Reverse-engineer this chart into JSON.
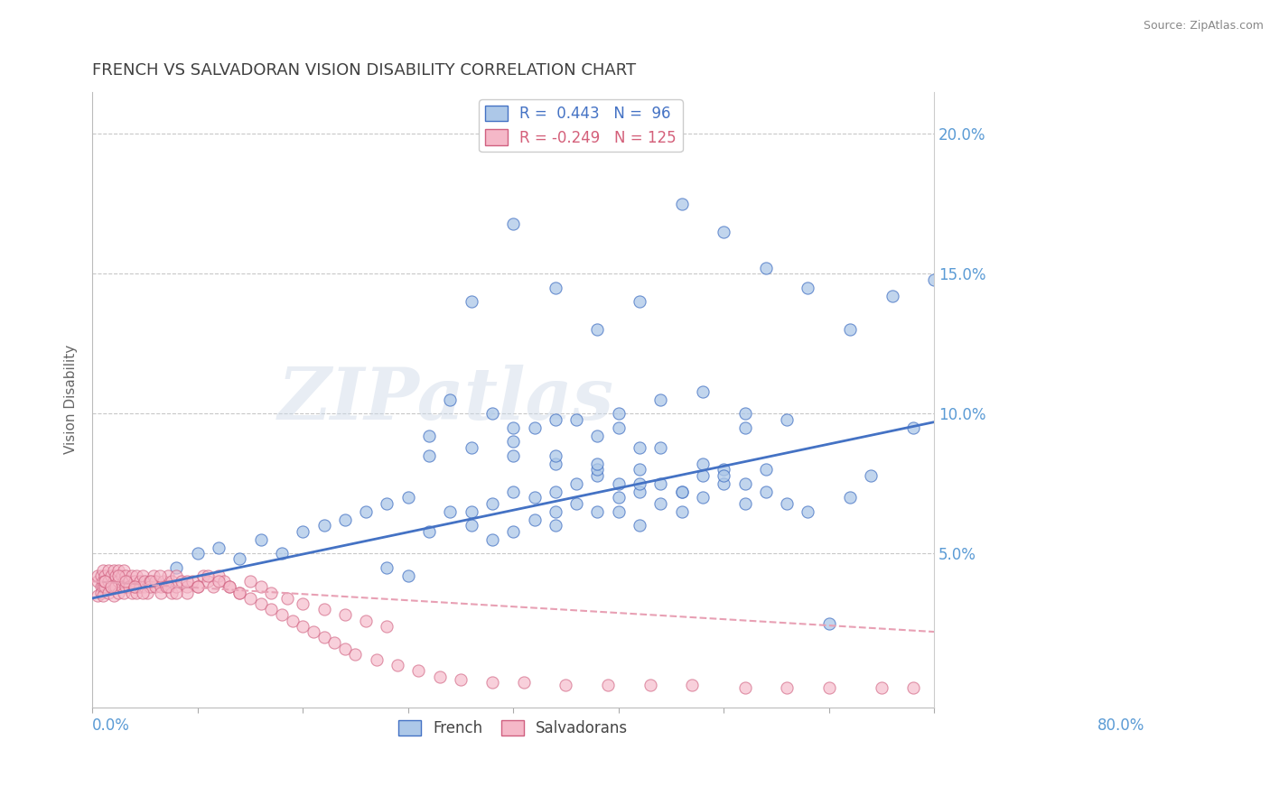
{
  "title": "FRENCH VS SALVADORAN VISION DISABILITY CORRELATION CHART",
  "source": "Source: ZipAtlas.com",
  "ylabel": "Vision Disability",
  "xlim": [
    0.0,
    0.8
  ],
  "ylim": [
    -0.005,
    0.215
  ],
  "watermark": "ZIPatlas",
  "french_color": "#adc8e8",
  "salvadoran_color": "#f5b8c8",
  "french_line_color": "#4472c4",
  "salvadoran_line_color": "#e8a0b4",
  "salvadoran_edge_color": "#d06080",
  "title_color": "#404040",
  "axis_label_color": "#5b9bd5",
  "grid_color": "#c8c8c8",
  "french_trend": [
    0.034,
    0.097
  ],
  "salvadoran_trend": [
    0.04,
    0.022
  ],
  "french_scatter_x": [
    0.08,
    0.1,
    0.12,
    0.14,
    0.16,
    0.18,
    0.2,
    0.22,
    0.24,
    0.26,
    0.28,
    0.3,
    0.32,
    0.34,
    0.36,
    0.38,
    0.38,
    0.4,
    0.4,
    0.42,
    0.42,
    0.44,
    0.44,
    0.44,
    0.46,
    0.46,
    0.48,
    0.48,
    0.5,
    0.5,
    0.5,
    0.52,
    0.52,
    0.52,
    0.54,
    0.54,
    0.56,
    0.56,
    0.58,
    0.58,
    0.6,
    0.6,
    0.62,
    0.62,
    0.64,
    0.66,
    0.68,
    0.7,
    0.72,
    0.74,
    0.78,
    0.32,
    0.36,
    0.4,
    0.44,
    0.48,
    0.52,
    0.56,
    0.6,
    0.64,
    0.32,
    0.36,
    0.4,
    0.44,
    0.48,
    0.52,
    0.4,
    0.44,
    0.48,
    0.34,
    0.38,
    0.42,
    0.46,
    0.5,
    0.54,
    0.58,
    0.62,
    0.5,
    0.54,
    0.58,
    0.62,
    0.66,
    0.36,
    0.4,
    0.44,
    0.48,
    0.52,
    0.56,
    0.6,
    0.64,
    0.68,
    0.72,
    0.76,
    0.8,
    0.28,
    0.3
  ],
  "french_scatter_y": [
    0.045,
    0.05,
    0.052,
    0.048,
    0.055,
    0.05,
    0.058,
    0.06,
    0.062,
    0.065,
    0.068,
    0.07,
    0.058,
    0.065,
    0.06,
    0.055,
    0.068,
    0.058,
    0.072,
    0.062,
    0.07,
    0.065,
    0.072,
    0.06,
    0.068,
    0.075,
    0.065,
    0.078,
    0.07,
    0.065,
    0.075,
    0.06,
    0.072,
    0.08,
    0.068,
    0.075,
    0.065,
    0.072,
    0.07,
    0.078,
    0.075,
    0.08,
    0.068,
    0.075,
    0.072,
    0.068,
    0.065,
    0.025,
    0.07,
    0.078,
    0.095,
    0.085,
    0.065,
    0.085,
    0.082,
    0.08,
    0.075,
    0.072,
    0.078,
    0.08,
    0.092,
    0.088,
    0.09,
    0.085,
    0.082,
    0.088,
    0.095,
    0.098,
    0.092,
    0.105,
    0.1,
    0.095,
    0.098,
    0.095,
    0.088,
    0.082,
    0.095,
    0.1,
    0.105,
    0.108,
    0.1,
    0.098,
    0.14,
    0.168,
    0.145,
    0.13,
    0.14,
    0.175,
    0.165,
    0.152,
    0.145,
    0.13,
    0.142,
    0.148,
    0.045,
    0.042
  ],
  "salvadoran_scatter_x": [
    0.005,
    0.005,
    0.005,
    0.008,
    0.008,
    0.008,
    0.01,
    0.01,
    0.01,
    0.01,
    0.012,
    0.012,
    0.012,
    0.015,
    0.015,
    0.015,
    0.018,
    0.018,
    0.02,
    0.02,
    0.02,
    0.02,
    0.022,
    0.022,
    0.025,
    0.025,
    0.025,
    0.028,
    0.028,
    0.03,
    0.03,
    0.03,
    0.032,
    0.032,
    0.035,
    0.035,
    0.038,
    0.038,
    0.04,
    0.04,
    0.042,
    0.042,
    0.045,
    0.045,
    0.048,
    0.05,
    0.05,
    0.052,
    0.055,
    0.055,
    0.058,
    0.06,
    0.06,
    0.065,
    0.065,
    0.068,
    0.07,
    0.072,
    0.075,
    0.075,
    0.08,
    0.08,
    0.085,
    0.09,
    0.09,
    0.095,
    0.1,
    0.105,
    0.11,
    0.115,
    0.12,
    0.125,
    0.13,
    0.14,
    0.15,
    0.16,
    0.17,
    0.18,
    0.19,
    0.2,
    0.21,
    0.22,
    0.23,
    0.24,
    0.25,
    0.27,
    0.29,
    0.31,
    0.33,
    0.35,
    0.38,
    0.41,
    0.45,
    0.49,
    0.53,
    0.57,
    0.62,
    0.66,
    0.7,
    0.75,
    0.78,
    0.012,
    0.018,
    0.025,
    0.032,
    0.04,
    0.048,
    0.056,
    0.064,
    0.072,
    0.08,
    0.09,
    0.1,
    0.11,
    0.12,
    0.13,
    0.14,
    0.15,
    0.16,
    0.17,
    0.185,
    0.2,
    0.22,
    0.24,
    0.26,
    0.28
  ],
  "salvadoran_scatter_y": [
    0.04,
    0.035,
    0.042,
    0.038,
    0.042,
    0.036,
    0.04,
    0.044,
    0.038,
    0.035,
    0.042,
    0.038,
    0.04,
    0.036,
    0.04,
    0.044,
    0.038,
    0.042,
    0.04,
    0.044,
    0.038,
    0.035,
    0.042,
    0.038,
    0.04,
    0.036,
    0.044,
    0.038,
    0.042,
    0.04,
    0.044,
    0.036,
    0.038,
    0.042,
    0.04,
    0.038,
    0.036,
    0.042,
    0.04,
    0.038,
    0.042,
    0.036,
    0.04,
    0.038,
    0.042,
    0.038,
    0.04,
    0.036,
    0.04,
    0.038,
    0.042,
    0.038,
    0.04,
    0.038,
    0.036,
    0.04,
    0.038,
    0.042,
    0.04,
    0.036,
    0.038,
    0.042,
    0.04,
    0.038,
    0.036,
    0.04,
    0.038,
    0.042,
    0.04,
    0.038,
    0.042,
    0.04,
    0.038,
    0.036,
    0.034,
    0.032,
    0.03,
    0.028,
    0.026,
    0.024,
    0.022,
    0.02,
    0.018,
    0.016,
    0.014,
    0.012,
    0.01,
    0.008,
    0.006,
    0.005,
    0.004,
    0.004,
    0.003,
    0.003,
    0.003,
    0.003,
    0.002,
    0.002,
    0.002,
    0.002,
    0.002,
    0.04,
    0.038,
    0.042,
    0.04,
    0.038,
    0.036,
    0.04,
    0.042,
    0.038,
    0.036,
    0.04,
    0.038,
    0.042,
    0.04,
    0.038,
    0.036,
    0.04,
    0.038,
    0.036,
    0.034,
    0.032,
    0.03,
    0.028,
    0.026,
    0.024
  ]
}
